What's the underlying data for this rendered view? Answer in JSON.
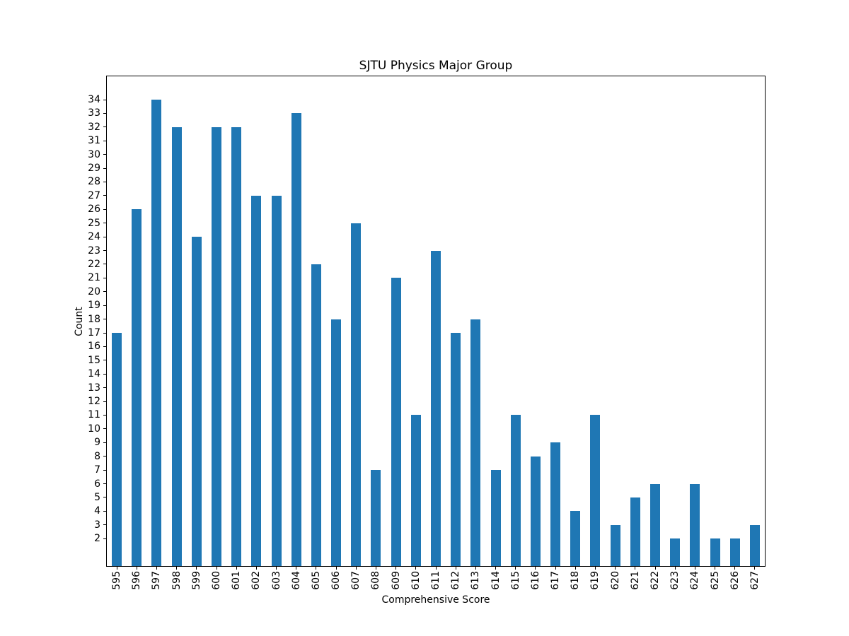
{
  "chart_data": {
    "type": "bar",
    "title": "SJTU Physics Major Group",
    "xlabel": "Comprehensive Score",
    "ylabel": "Count",
    "categories": [
      "595",
      "596",
      "597",
      "598",
      "599",
      "600",
      "601",
      "602",
      "603",
      "604",
      "605",
      "606",
      "607",
      "608",
      "609",
      "610",
      "611",
      "612",
      "613",
      "614",
      "615",
      "616",
      "617",
      "618",
      "619",
      "620",
      "621",
      "622",
      "623",
      "624",
      "625",
      "626",
      "627"
    ],
    "values": [
      17,
      26,
      34,
      32,
      24,
      32,
      32,
      27,
      27,
      33,
      22,
      18,
      25,
      7,
      21,
      11,
      23,
      17,
      18,
      7,
      11,
      8,
      9,
      4,
      11,
      3,
      5,
      6,
      2,
      6,
      2,
      2,
      3
    ],
    "yticks": [
      2,
      3,
      4,
      5,
      6,
      7,
      8,
      9,
      10,
      11,
      12,
      13,
      14,
      15,
      16,
      17,
      18,
      19,
      20,
      21,
      22,
      23,
      24,
      25,
      26,
      27,
      28,
      29,
      30,
      31,
      32,
      33,
      34
    ],
    "ylim": [
      0,
      35.7
    ],
    "bar_color": "#1f77b4",
    "bar_width_fraction": 0.5,
    "grid": false,
    "x_tick_rotation": 90,
    "legend": null
  }
}
